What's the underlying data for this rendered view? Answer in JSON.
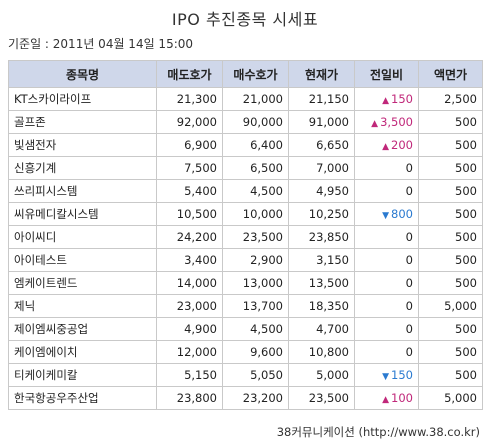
{
  "title": "IPO 추진종목 시세표",
  "base_date": "기준일 : 2011년 04월 14일 15:00",
  "columns": [
    "종목명",
    "매도호가",
    "매수호가",
    "현재가",
    "전일비",
    "액면가"
  ],
  "rows": [
    {
      "name": "KT스카이라이프",
      "ask": "21,300",
      "bid": "21,000",
      "price": "21,150",
      "dir": "up",
      "change": "150",
      "par": "2,500"
    },
    {
      "name": "골프존",
      "ask": "92,000",
      "bid": "90,000",
      "price": "91,000",
      "dir": "up",
      "change": "3,500",
      "par": "500"
    },
    {
      "name": "빛샘전자",
      "ask": "6,900",
      "bid": "6,400",
      "price": "6,650",
      "dir": "up",
      "change": "200",
      "par": "500"
    },
    {
      "name": "신흥기계",
      "ask": "7,500",
      "bid": "6,500",
      "price": "7,000",
      "dir": "none",
      "change": "0",
      "par": "500"
    },
    {
      "name": "쓰리피시스템",
      "ask": "5,400",
      "bid": "4,500",
      "price": "4,950",
      "dir": "none",
      "change": "0",
      "par": "500"
    },
    {
      "name": "씨유메디칼시스템",
      "ask": "10,500",
      "bid": "10,000",
      "price": "10,250",
      "dir": "down",
      "change": "800",
      "par": "500"
    },
    {
      "name": "아이씨디",
      "ask": "24,200",
      "bid": "23,500",
      "price": "23,850",
      "dir": "none",
      "change": "0",
      "par": "500"
    },
    {
      "name": "아이테스트",
      "ask": "3,400",
      "bid": "2,900",
      "price": "3,150",
      "dir": "none",
      "change": "0",
      "par": "500"
    },
    {
      "name": "엠케이트렌드",
      "ask": "14,000",
      "bid": "13,000",
      "price": "13,500",
      "dir": "none",
      "change": "0",
      "par": "500"
    },
    {
      "name": "제닉",
      "ask": "23,000",
      "bid": "13,700",
      "price": "18,350",
      "dir": "none",
      "change": "0",
      "par": "5,000"
    },
    {
      "name": "제이엠씨중공업",
      "ask": "4,900",
      "bid": "4,500",
      "price": "4,700",
      "dir": "none",
      "change": "0",
      "par": "500"
    },
    {
      "name": "케이엠에이치",
      "ask": "12,000",
      "bid": "9,600",
      "price": "10,800",
      "dir": "none",
      "change": "0",
      "par": "500"
    },
    {
      "name": "티케이케미칼",
      "ask": "5,150",
      "bid": "5,050",
      "price": "5,000",
      "dir": "down",
      "change": "150",
      "par": "500"
    },
    {
      "name": "한국항공우주산업",
      "ask": "23,800",
      "bid": "23,200",
      "price": "23,500",
      "dir": "up",
      "change": "100",
      "par": "5,000"
    }
  ],
  "icons": {
    "up": "▲",
    "down": "▼"
  },
  "colors": {
    "header_bg": "#cfd7ea",
    "up": "#c0287a",
    "down": "#2a7ad0"
  },
  "footer": "38커뮤니케이션 (http://www.38.co.kr)"
}
